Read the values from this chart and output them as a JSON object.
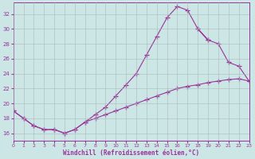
{
  "xlabel": "Windchill (Refroidissement éolien,°C)",
  "bg_color": "#cce5e5",
  "line_color": "#993399",
  "xlim": [
    0,
    23
  ],
  "ylim": [
    15.0,
    33.5
  ],
  "yticks": [
    16,
    18,
    20,
    22,
    24,
    26,
    28,
    30,
    32
  ],
  "xticks": [
    0,
    1,
    2,
    3,
    4,
    5,
    6,
    7,
    8,
    9,
    10,
    11,
    12,
    13,
    14,
    15,
    16,
    17,
    18,
    19,
    20,
    21,
    22,
    23
  ],
  "curve1_x": [
    0,
    1,
    2,
    3,
    4,
    5,
    6,
    7,
    8,
    9,
    10,
    11,
    12,
    13,
    14,
    15,
    16,
    17,
    18,
    19,
    20,
    21,
    22,
    23
  ],
  "curve1_y": [
    19.0,
    18.0,
    17.0,
    16.5,
    16.5,
    16.0,
    16.5,
    17.5,
    18.5,
    19.5,
    21.0,
    22.5,
    24.0,
    26.5,
    29.0,
    31.5,
    33.0,
    32.5,
    30.0,
    28.5,
    null,
    null,
    null,
    null
  ],
  "curve2_x": [
    0,
    1,
    2,
    3,
    4,
    5,
    6,
    7,
    8,
    9,
    10,
    11,
    12,
    13,
    14,
    15,
    16,
    17,
    18,
    19,
    20,
    21,
    22,
    23
  ],
  "curve2_y": [
    null,
    null,
    null,
    null,
    null,
    null,
    null,
    null,
    null,
    null,
    null,
    null,
    null,
    null,
    null,
    null,
    null,
    null,
    30.0,
    28.5,
    28.0,
    25.5,
    25.0,
    23.0
  ],
  "curve3_x": [
    0,
    1,
    2,
    3,
    4,
    5,
    6,
    7,
    8,
    9,
    10,
    11,
    12,
    13,
    14,
    15,
    16,
    17,
    18,
    19,
    20,
    21,
    22,
    23
  ],
  "curve3_y": [
    19.0,
    18.0,
    17.0,
    16.5,
    16.5,
    16.0,
    16.5,
    17.5,
    18.0,
    18.5,
    19.0,
    19.5,
    20.0,
    20.5,
    21.0,
    21.5,
    22.0,
    22.3,
    22.5,
    22.8,
    23.0,
    23.2,
    23.3,
    23.0
  ]
}
